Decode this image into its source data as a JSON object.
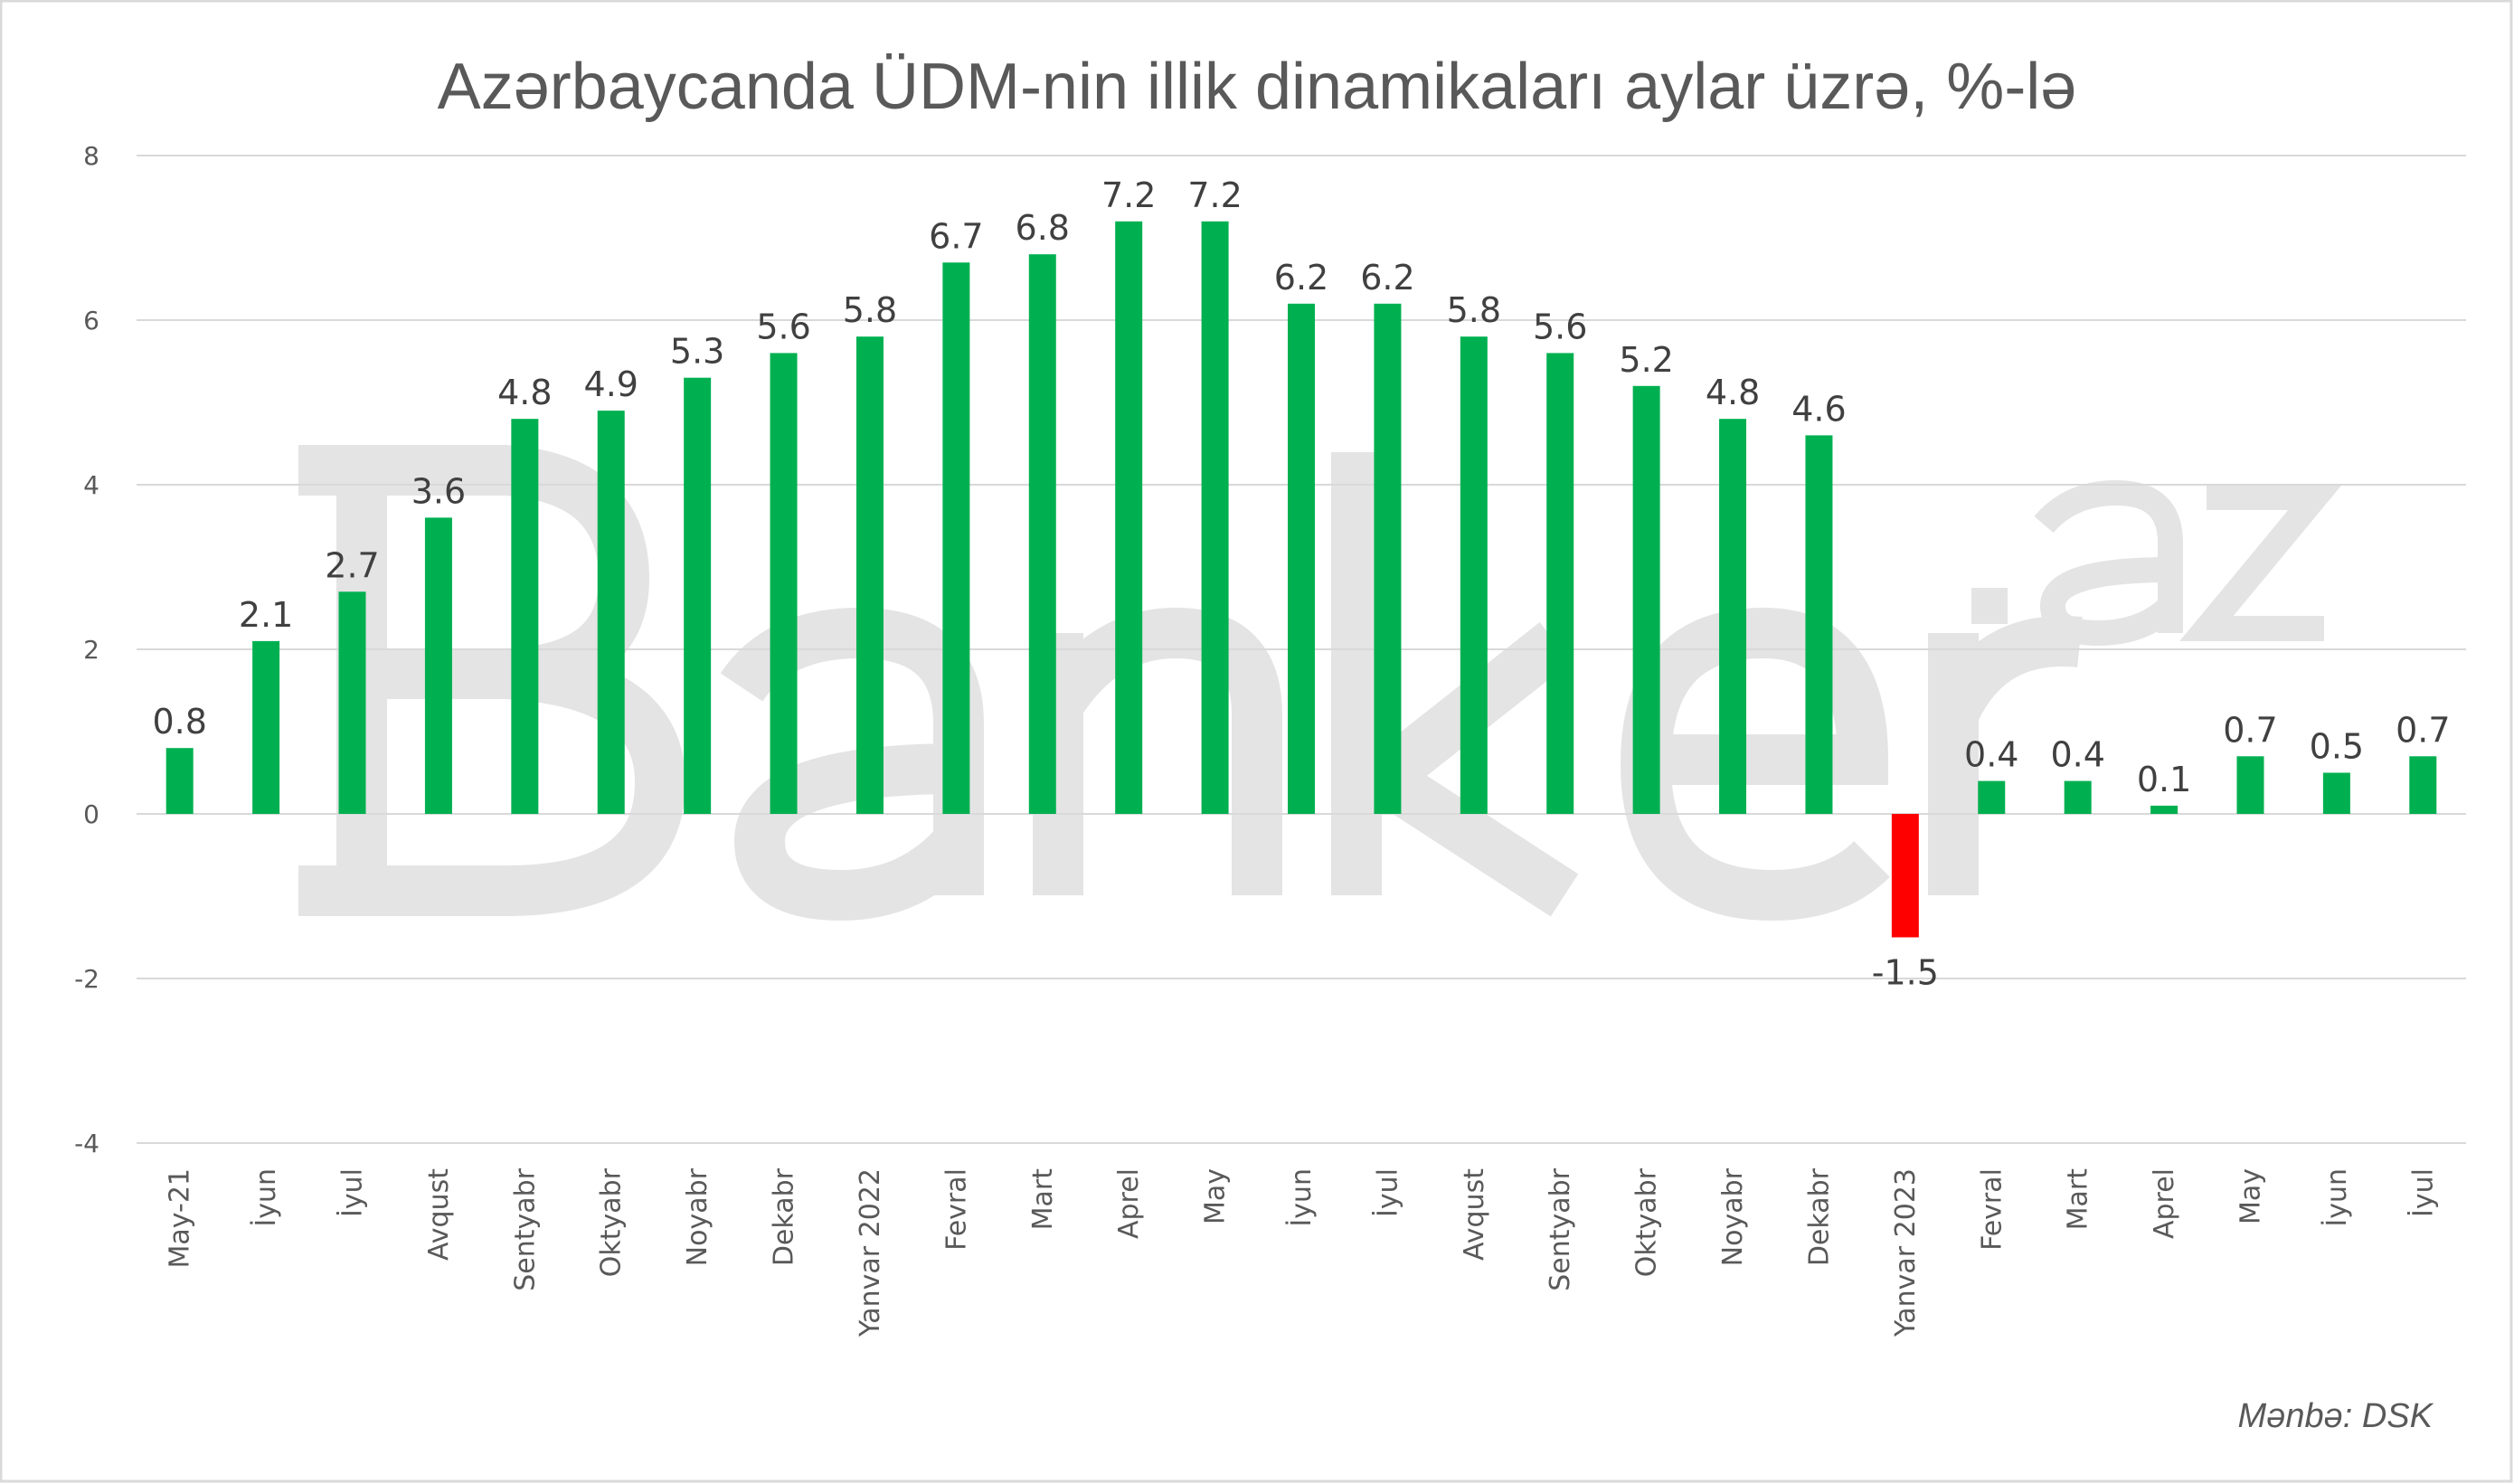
{
  "chart_data": {
    "type": "bar",
    "title": "Azərbaycanda ÜDM-nin illik dinamikaları aylar üzrə, %-lə",
    "xlabel": "",
    "ylabel": "",
    "ylim": [
      -4,
      8
    ],
    "yticks": [
      8,
      6,
      4,
      2,
      0,
      -2,
      -4
    ],
    "grid": true,
    "legend": "none",
    "categories": [
      "May-21",
      "İyun",
      "İyul",
      "Avqust",
      "Sentyabr",
      "Oktyabr",
      "Noyabr",
      "Dekabr",
      "Yanvar 2022",
      "Fevral",
      "Mart",
      "Aprel",
      "May",
      "İyun",
      "İyul",
      "Avqust",
      "Sentyabr",
      "Oktyabr",
      "Noyabr",
      "Dekabr",
      "Yanvar 2023",
      "Fevral",
      "Mart",
      "Aprel",
      "May",
      "İyun",
      "İyul"
    ],
    "values": [
      0.8,
      2.1,
      2.7,
      3.6,
      4.8,
      4.9,
      5.3,
      5.6,
      5.8,
      6.7,
      6.8,
      7.2,
      7.2,
      6.2,
      6.2,
      5.8,
      5.6,
      5.2,
      4.8,
      4.6,
      -1.5,
      0.4,
      0.4,
      0.1,
      0.7,
      0.5,
      0.7
    ],
    "colors": {
      "positive": "#00b050",
      "negative": "#ff0000",
      "grid": "#d9d9d9"
    },
    "source": "Mənbə: DSK",
    "watermark": "Banker.az"
  }
}
